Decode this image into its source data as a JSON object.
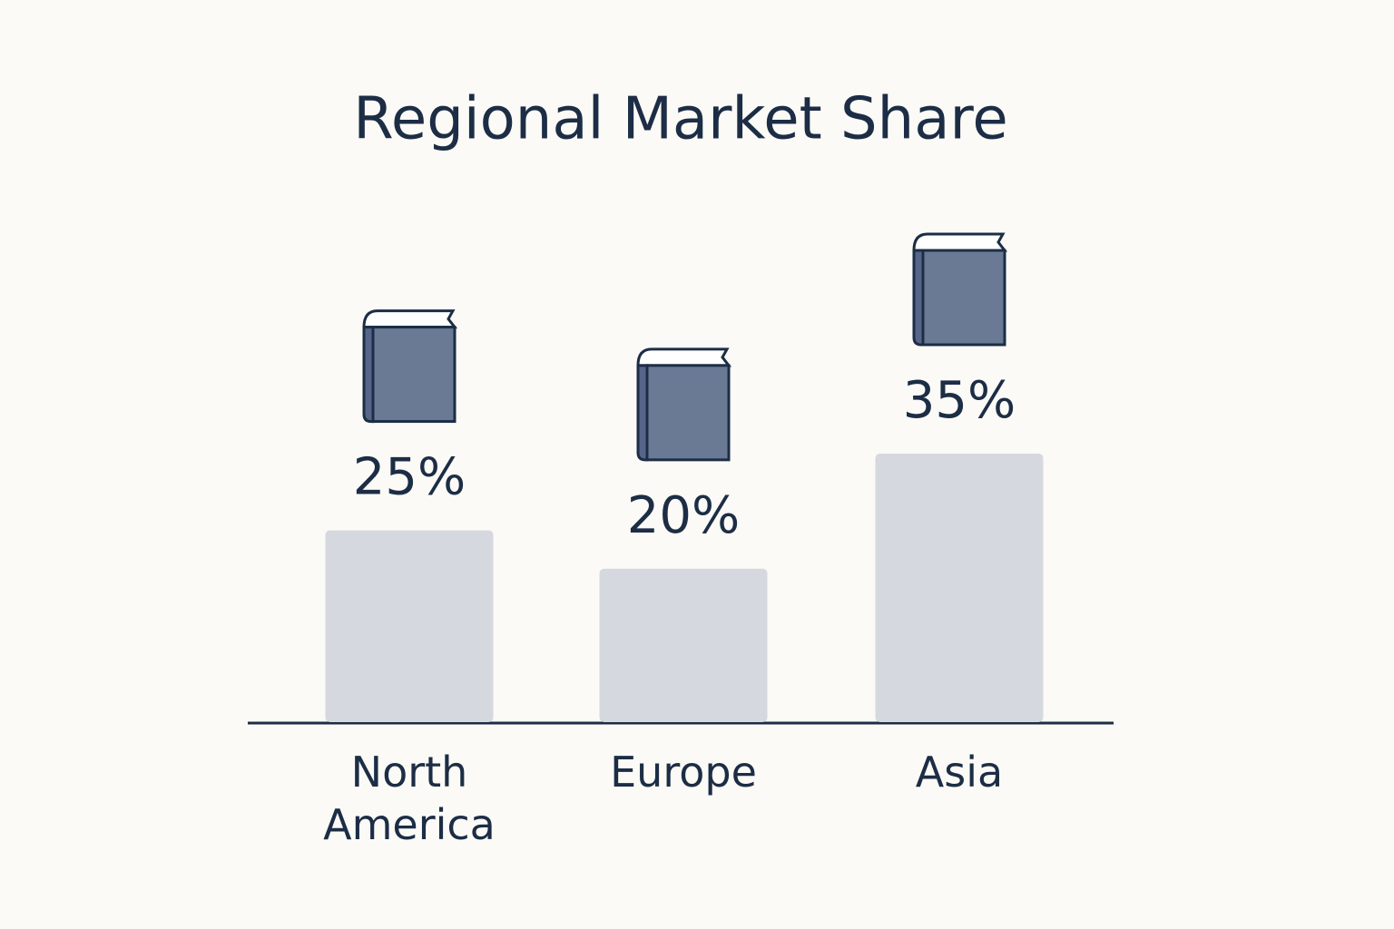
{
  "chart_data": {
    "type": "bar",
    "title": "Regional Market Share",
    "categories": [
      "North America",
      "Europe",
      "Asia"
    ],
    "values": [
      25,
      20,
      35
    ],
    "value_labels": [
      "25%",
      "20%",
      "35%"
    ],
    "color": "#d6d8df"
  }
}
